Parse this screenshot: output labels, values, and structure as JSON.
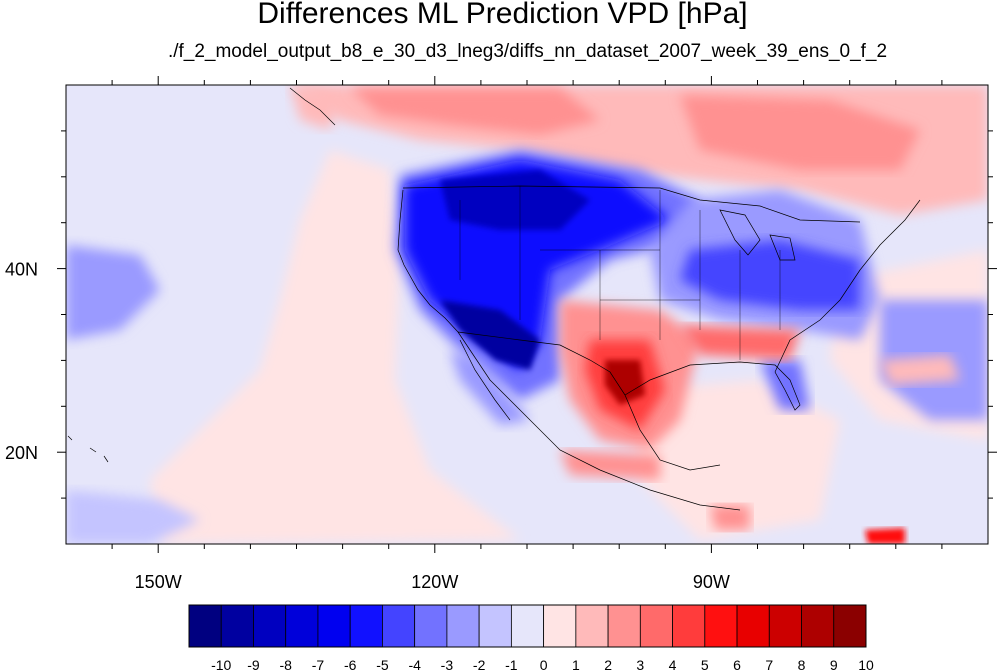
{
  "title": "Differences ML Prediction VPD [hPa]",
  "subtitle": "./f_2_model_output_b8_e_30_d3_lneg3/diffs_nn_dataset_2007_week_39_ens_0_f_2",
  "map": {
    "lon_range": [
      -160,
      -60
    ],
    "lat_range": [
      10,
      60
    ],
    "lon_labels": [
      {
        "lon": -150,
        "text": "150W"
      },
      {
        "lon": -120,
        "text": "120W"
      },
      {
        "lon": -90,
        "text": "90W"
      }
    ],
    "lat_labels": [
      {
        "lat": 40,
        "text": "40N"
      },
      {
        "lat": 20,
        "text": "20N"
      }
    ],
    "background_color": "#e6e6fa"
  },
  "colorbar": {
    "labels": [
      "-10",
      "-9",
      "-8",
      "-7",
      "-6",
      "-5",
      "-4",
      "-3",
      "-2",
      "-1",
      "0",
      "1",
      "2",
      "3",
      "4",
      "5",
      "6",
      "7",
      "8",
      "9",
      "10"
    ],
    "colors": [
      "#000080",
      "#0000a0",
      "#0000c0",
      "#0000da",
      "#0000f0",
      "#1111ff",
      "#4444ff",
      "#7272ff",
      "#9a9aff",
      "#c4c4ff",
      "#e6e6fa",
      "#ffe4e4",
      "#ffbaba",
      "#ff9191",
      "#ff6a6a",
      "#ff3c3c",
      "#ff1010",
      "#e80000",
      "#cc0000",
      "#ad0000",
      "#8b0000"
    ]
  }
}
